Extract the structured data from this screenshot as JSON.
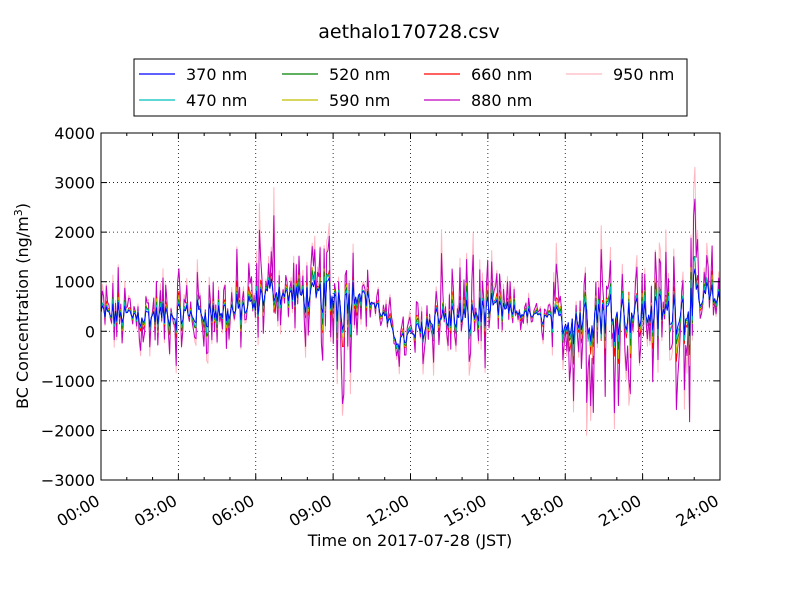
{
  "chart_data": {
    "type": "line",
    "title": "aethalo170728.csv",
    "xlabel": "Time on 2017-07-28 (JST)",
    "ylabel": "BC Concentration (ng/m",
    "ylabel_sup": "3",
    "ylabel_end": ")",
    "x_unit": "hours",
    "xlim": [
      0,
      24
    ],
    "ylim": [
      -3000,
      4000
    ],
    "x_ticks": [
      0,
      3,
      6,
      9,
      12,
      15,
      18,
      21,
      24
    ],
    "x_tick_labels": [
      "00:00",
      "03:00",
      "06:00",
      "09:00",
      "12:00",
      "15:00",
      "18:00",
      "21:00",
      "24:00"
    ],
    "y_ticks": [
      -3000,
      -2000,
      -1000,
      0,
      1000,
      2000,
      3000,
      4000
    ],
    "y_tick_labels": [
      "−3000",
      "−2000",
      "−1000",
      "0",
      "1000",
      "2000",
      "3000",
      "4000"
    ],
    "grid": true,
    "legend_position": "top-center",
    "legend_columns": 4,
    "series": [
      {
        "name": "370 nm",
        "color": "#0000ff"
      },
      {
        "name": "470 nm",
        "color": "#00bfbf"
      },
      {
        "name": "520 nm",
        "color": "#008000"
      },
      {
        "name": "590 nm",
        "color": "#bfbf00"
      },
      {
        "name": "660 nm",
        "color": "#ff0000"
      },
      {
        "name": "880 nm",
        "color": "#bf00bf"
      },
      {
        "name": "950 nm",
        "color": "#ffb6c1"
      }
    ],
    "baseline": {
      "x": [
        0,
        1,
        2,
        3,
        4,
        5,
        6,
        6.5,
        7,
        8,
        9,
        9.5,
        10,
        10.5,
        11,
        11.5,
        12,
        13,
        14,
        15,
        16,
        17,
        18,
        19,
        20,
        21,
        22,
        23,
        23.5,
        24
      ],
      "y": [
        350,
        320,
        300,
        320,
        350,
        400,
        500,
        850,
        750,
        700,
        700,
        600,
        800,
        600,
        300,
        -200,
        -100,
        300,
        250,
        450,
        400,
        300,
        200,
        350,
        400,
        350,
        400,
        500,
        700,
        650
      ]
    },
    "amplitude_env": {
      "x": [
        0,
        3,
        6,
        7,
        8,
        9,
        9.5,
        10,
        11,
        12,
        13,
        14,
        15,
        16,
        17,
        18,
        18.2,
        19,
        20,
        21,
        22,
        23,
        24
      ],
      "y": [
        550,
        650,
        700,
        500,
        650,
        1200,
        1400,
        400,
        300,
        450,
        700,
        900,
        700,
        350,
        200,
        800,
        1300,
        1300,
        1100,
        900,
        1000,
        1400,
        300
      ]
    }
  }
}
